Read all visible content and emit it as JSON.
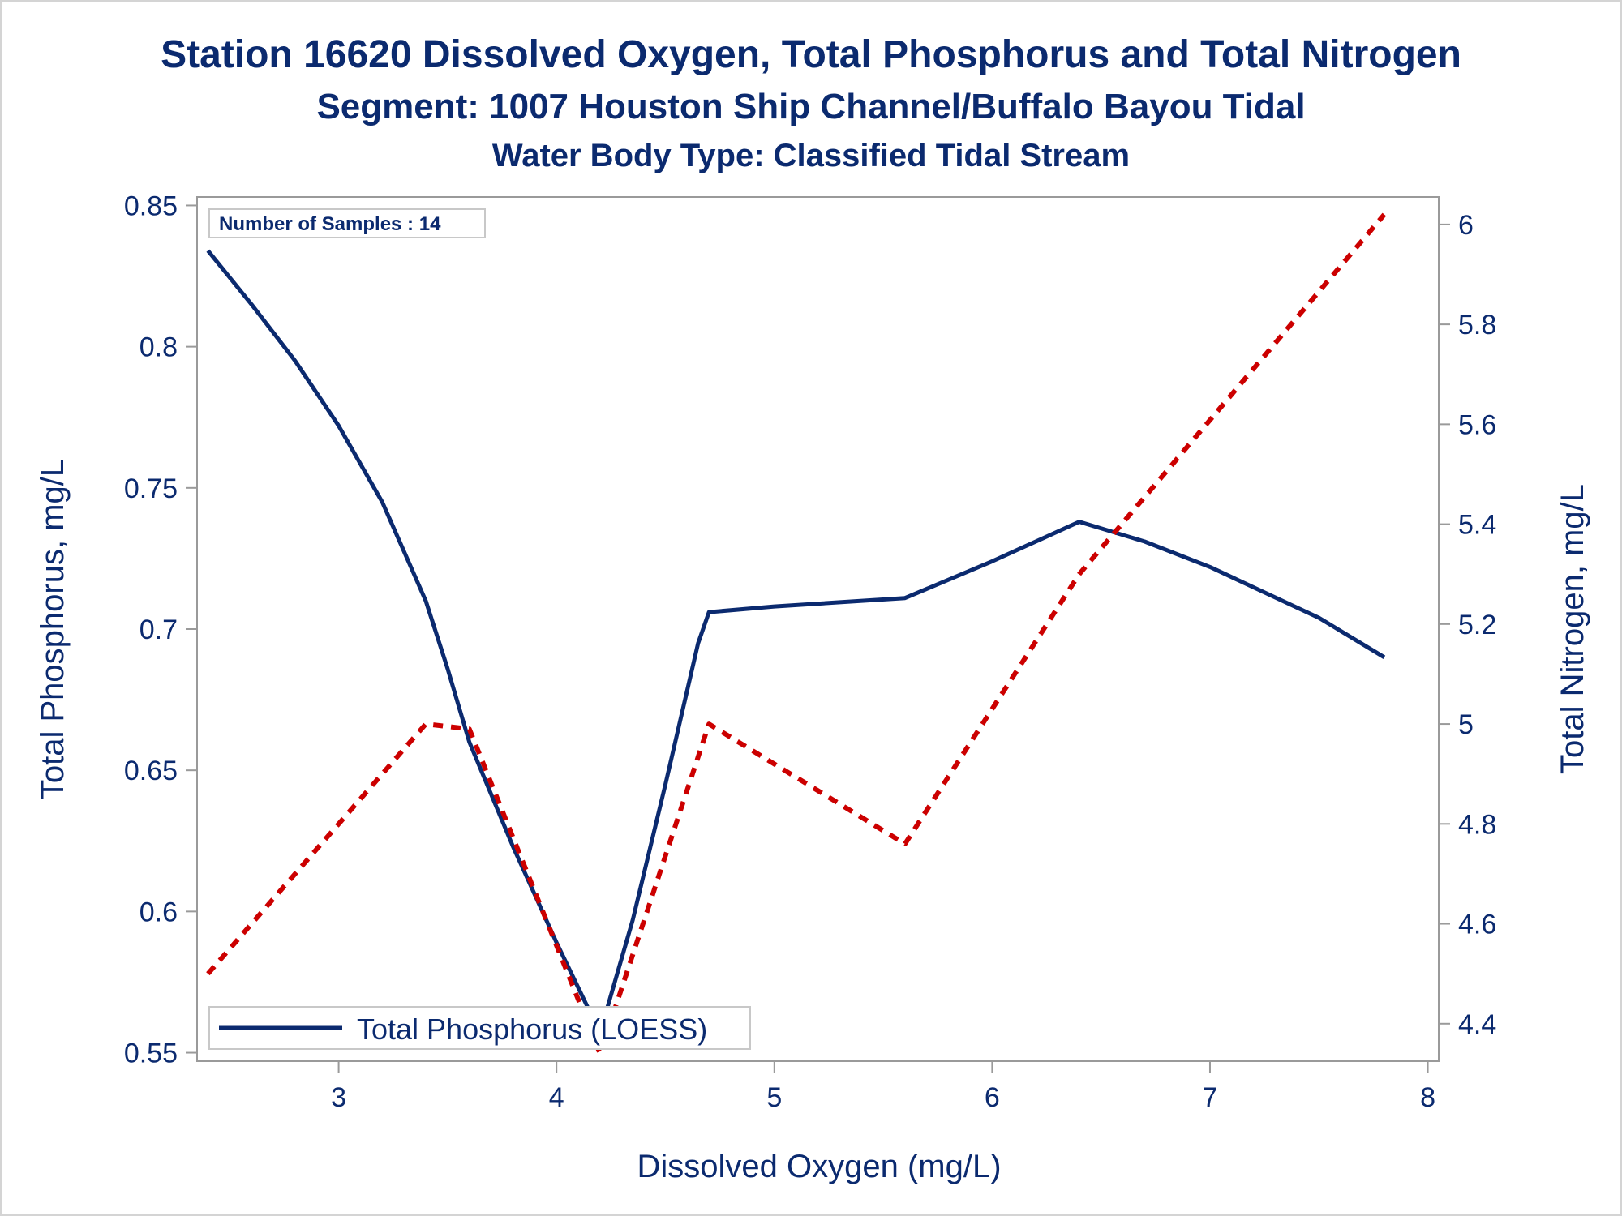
{
  "titles": {
    "line1": "Station 16620  Dissolved Oxygen, Total Phosphorus and Total Nitrogen",
    "line2": "Segment: 1007  Houston Ship Channel/Buffalo Bayou Tidal",
    "line3": "Water Body Type: Classified Tidal Stream"
  },
  "colors": {
    "text": "#0b2a6f",
    "phosphorus": "#0b2a6f",
    "nitrogen": "#cc0000",
    "axis": "#9a9a9a"
  },
  "chart_data": {
    "type": "line",
    "xlabel": "Dissolved Oxygen (mg/L)",
    "ylabel": "Total Phosphorus, mg/L",
    "y2label": "Total Nitrogen, mg/L",
    "xlim": [
      2.35,
      8.05
    ],
    "ylim": [
      0.547,
      0.853
    ],
    "y2lim": [
      4.325,
      6.055
    ],
    "x_ticks": [
      "3",
      "4",
      "5",
      "6",
      "7",
      "8"
    ],
    "y_ticks": [
      "0.55",
      "0.6",
      "0.65",
      "0.7",
      "0.75",
      "0.8",
      "0.85"
    ],
    "y2_ticks": [
      "4.4",
      "4.6",
      "4.8",
      "5",
      "5.2",
      "5.4",
      "5.6",
      "5.8",
      "6"
    ],
    "inset_label": "Number of Samples : 14",
    "grid": false,
    "legend_position": "bottom-left",
    "series": [
      {
        "name": "Total Phosphorus (LOESS)",
        "axis": "left",
        "style": "solid",
        "x": [
          2.4,
          2.6,
          2.8,
          3.0,
          3.2,
          3.4,
          3.5,
          3.6,
          3.8,
          4.0,
          4.2,
          4.35,
          4.5,
          4.65,
          4.7,
          5.0,
          5.6,
          6.0,
          6.4,
          6.7,
          7.0,
          7.5,
          7.8
        ],
        "y": [
          0.834,
          0.815,
          0.795,
          0.772,
          0.745,
          0.71,
          0.686,
          0.66,
          0.623,
          0.589,
          0.557,
          0.597,
          0.645,
          0.695,
          0.706,
          0.708,
          0.711,
          0.724,
          0.738,
          0.731,
          0.722,
          0.704,
          0.69
        ]
      },
      {
        "name": "Total Nitrogen",
        "axis": "right",
        "style": "dashed",
        "x": [
          2.4,
          3.4,
          3.6,
          4.2,
          4.7,
          5.6,
          6.4,
          7.8
        ],
        "y": [
          4.5,
          5.0,
          4.99,
          4.34,
          5.0,
          4.76,
          5.3,
          6.02
        ]
      }
    ]
  }
}
